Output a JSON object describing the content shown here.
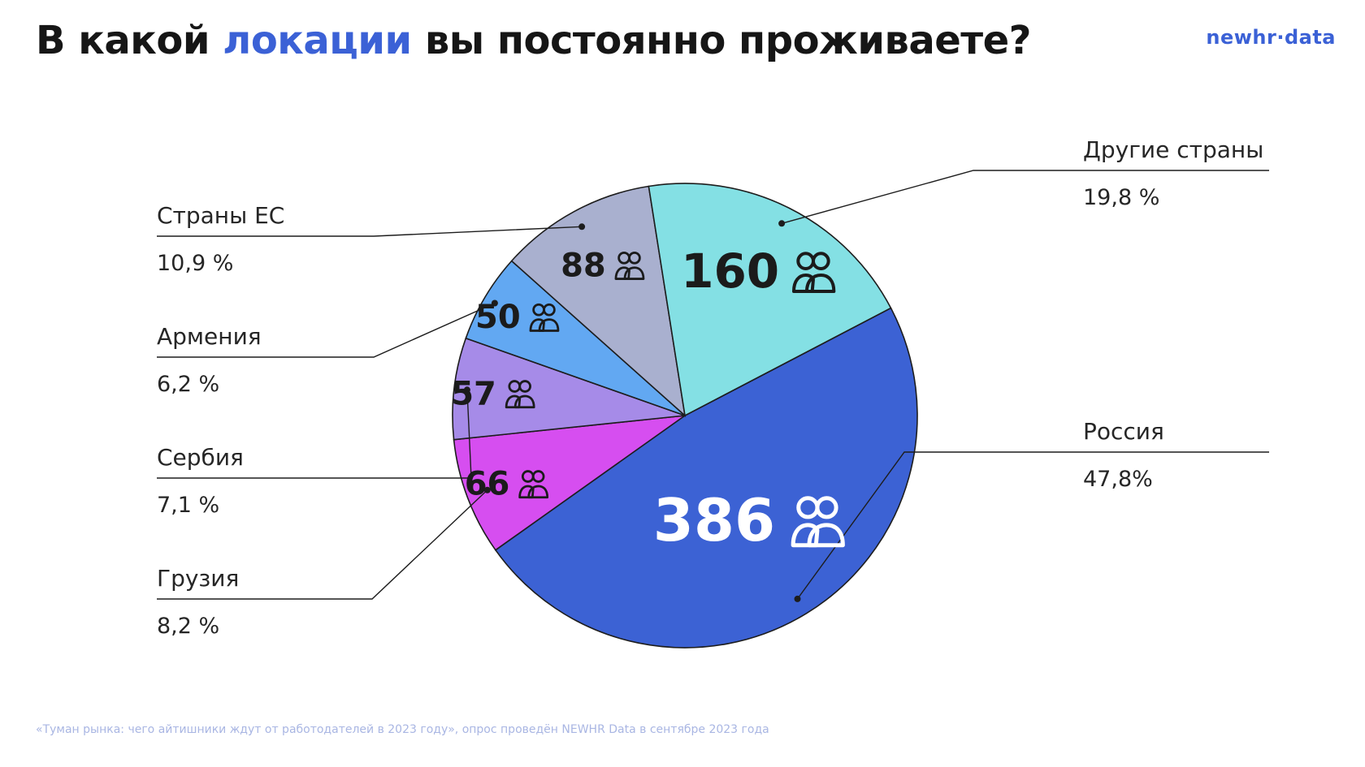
{
  "title": {
    "part1": "В какой ",
    "highlight": "локации",
    "part2": " вы постоянно проживаете?"
  },
  "logo": "newhr·data",
  "footer": "«Туман рынка: чего айтишники ждут от работодателей в 2023 году», опрос проведён NEWHR Data в сентябре 2023 года",
  "colors": {
    "accent": "#3b61d6"
  },
  "chart_data": {
    "type": "pie",
    "title": "В какой локации вы постоянно проживаете?",
    "icon": "people-icon",
    "slices": [
      {
        "key": "russia",
        "label": "Россия",
        "value": 386,
        "percent": "47,8%",
        "color": "#3c62d4"
      },
      {
        "key": "georgia",
        "label": "Грузия",
        "value": 66,
        "percent": "8,2 %",
        "color": "#d64ef0"
      },
      {
        "key": "serbia",
        "label": "Сербия",
        "value": 57,
        "percent": "7,1 %",
        "color": "#a68be8"
      },
      {
        "key": "armenia",
        "label": "Армения",
        "value": 50,
        "percent": "6,2 %",
        "color": "#62a8f2"
      },
      {
        "key": "eu",
        "label": "Страны ЕС",
        "value": 88,
        "percent": "10,9 %",
        "color": "#a9b0cf"
      },
      {
        "key": "other",
        "label": "Другие страны",
        "value": 160,
        "percent": "19,8 %",
        "color": "#84e0e4"
      }
    ]
  }
}
